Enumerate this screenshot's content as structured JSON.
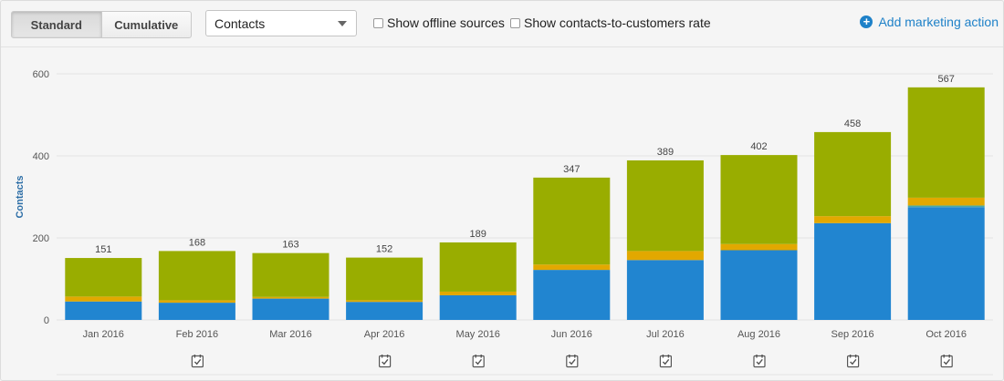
{
  "toolbar": {
    "view_options": [
      "Standard",
      "Cumulative"
    ],
    "active_view": "Standard",
    "metric_select": "Contacts",
    "checkboxes": [
      "Show offline sources",
      "Show contacts-to-customers rate"
    ],
    "add_action_label": "Add marketing action"
  },
  "chart_data": {
    "type": "bar",
    "stacked": true,
    "ylabel": "Contacts",
    "ylim": [
      0,
      600
    ],
    "yticks": [
      0,
      200,
      400,
      600
    ],
    "grid": true,
    "categories": [
      "Jan 2016",
      "Feb 2016",
      "Mar 2016",
      "Apr 2016",
      "May 2016",
      "Jun 2016",
      "Jul 2016",
      "Aug 2016",
      "Sep 2016",
      "Oct 2016"
    ],
    "totals": [
      151,
      168,
      163,
      152,
      189,
      347,
      389,
      402,
      458,
      567
    ],
    "series": [
      {
        "color": "#2185d0",
        "values": [
          45,
          42,
          52,
          44,
          60,
          122,
          146,
          170,
          236,
          275
        ]
      },
      {
        "color": "#4aa9a4",
        "values": [
          0,
          0,
          0,
          0,
          0,
          0,
          0,
          0,
          0,
          4
        ]
      },
      {
        "color": "#e2a800",
        "values": [
          12,
          6,
          4,
          4,
          9,
          13,
          22,
          15,
          17,
          19
        ]
      },
      {
        "color": "#99ad00",
        "values": [
          94,
          120,
          107,
          104,
          120,
          212,
          221,
          217,
          205,
          269
        ]
      }
    ],
    "marketing_action_markers": [
      "Feb 2016",
      "Apr 2016",
      "May 2016",
      "Jun 2016",
      "Jul 2016",
      "Aug 2016",
      "Sep 2016",
      "Oct 2016"
    ]
  }
}
